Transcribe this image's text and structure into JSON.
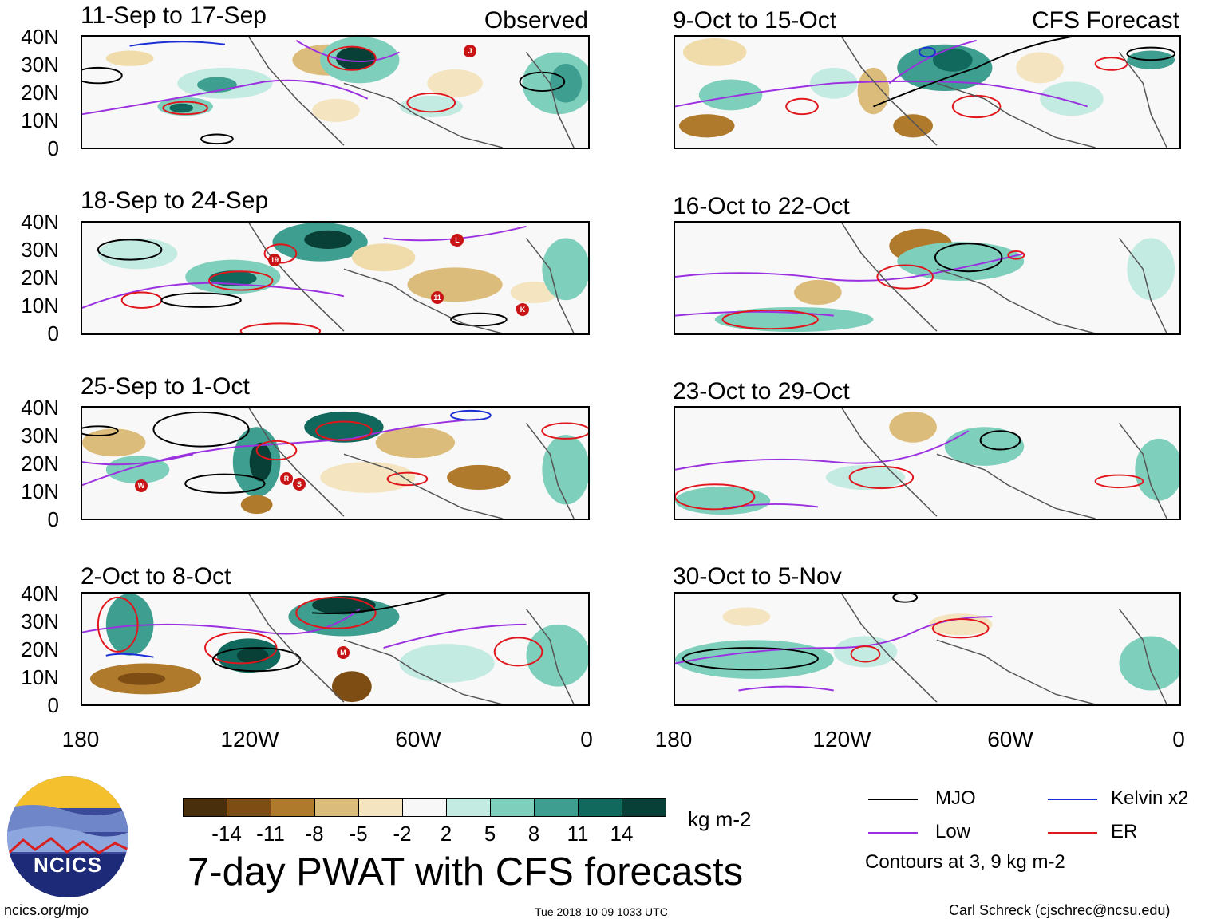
{
  "panels": [
    {
      "title": "11-Sep to 17-Sep",
      "tag": "Observed"
    },
    {
      "title": "18-Sep to 24-Sep",
      "tag": ""
    },
    {
      "title": "25-Sep to 1-Oct",
      "tag": ""
    },
    {
      "title": "2-Oct to 8-Oct",
      "tag": ""
    },
    {
      "title": "9-Oct to 15-Oct",
      "tag": "CFS Forecast"
    },
    {
      "title": "16-Oct to 22-Oct",
      "tag": ""
    },
    {
      "title": "23-Oct to 29-Oct",
      "tag": ""
    },
    {
      "title": "30-Oct to 5-Nov",
      "tag": ""
    }
  ],
  "latitude_labels": [
    "40N",
    "30N",
    "20N",
    "10N",
    "0"
  ],
  "longitude_labels": [
    "180",
    "120W",
    "60W",
    "0"
  ],
  "colorbar": {
    "colors": [
      "#4a2f0d",
      "#7d4d14",
      "#b07a2c",
      "#dcbc7b",
      "#f4e4bf",
      "#f7f7f7",
      "#c4ebe2",
      "#7fcfbd",
      "#3e9e8f",
      "#11695e",
      "#083f36"
    ],
    "ticks": [
      "-14",
      "-11",
      "-8",
      "-5",
      "-2",
      "2",
      "5",
      "8",
      "11",
      "14"
    ],
    "units": "kg m-2"
  },
  "title": "7-day PWAT with CFS forecasts",
  "legend": {
    "items": [
      {
        "label": "MJO",
        "color": "#000000"
      },
      {
        "label": "Kelvin x2",
        "color": "#1c2fd6"
      },
      {
        "label": "Low",
        "color": "#9b30e0"
      },
      {
        "label": "ER",
        "color": "#e0161c"
      }
    ],
    "contours_note": "Contours at 3, 9 kg m-2"
  },
  "logo": {
    "text": "NCICS"
  },
  "footer": {
    "url": "ncics.org/mjo",
    "timestamp": "Tue 2018-10-09 1033 UTC",
    "credit": "Carl Schreck (cjschrec@ncsu.edu)"
  },
  "storm_markers": [
    {
      "panel": 0,
      "letter": "J"
    },
    {
      "panel": 1,
      "letter": "L"
    },
    {
      "panel": 1,
      "letter": "19"
    },
    {
      "panel": 1,
      "letter": "11"
    },
    {
      "panel": 1,
      "letter": "K"
    },
    {
      "panel": 2,
      "letter": "W"
    },
    {
      "panel": 2,
      "letter": "R"
    },
    {
      "panel": 2,
      "letter": "S"
    },
    {
      "panel": 3,
      "letter": "M"
    }
  ]
}
